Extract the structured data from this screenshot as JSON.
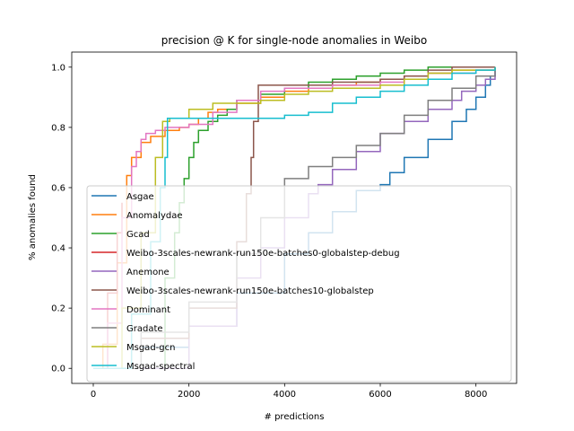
{
  "chart_data": {
    "type": "line",
    "title": "precision @ K for single-node anomalies in Weibo",
    "xlabel": "# predictions",
    "ylabel": "% anomalies found",
    "xlim": [
      -450,
      8850
    ],
    "ylim": [
      -0.05,
      1.05
    ],
    "xticks": [
      0,
      2000,
      4000,
      6000,
      8000
    ],
    "xtick_labels": [
      "0",
      "2000",
      "4000",
      "6000",
      "8000"
    ],
    "yticks": [
      0.0,
      0.2,
      0.4,
      0.6,
      0.8,
      1.0
    ],
    "ytick_labels": [
      "0.0",
      "0.2",
      "0.4",
      "0.6",
      "0.8",
      "1.0"
    ],
    "grid": false,
    "legend_position": "lower-left",
    "series": [
      {
        "name": "Asgae",
        "color": "#1f77b4",
        "points": [
          [
            0,
            0.0
          ],
          [
            1000,
            0.07
          ],
          [
            2000,
            0.14
          ],
          [
            3000,
            0.25
          ],
          [
            4000,
            0.38
          ],
          [
            4500,
            0.45
          ],
          [
            5000,
            0.52
          ],
          [
            5500,
            0.59
          ],
          [
            6000,
            0.61
          ],
          [
            6200,
            0.65
          ],
          [
            6500,
            0.7
          ],
          [
            7000,
            0.76
          ],
          [
            7500,
            0.82
          ],
          [
            7800,
            0.86
          ],
          [
            8000,
            0.9
          ],
          [
            8200,
            0.94
          ],
          [
            8300,
            0.97
          ],
          [
            8400,
            1.0
          ]
        ]
      },
      {
        "name": "Anomalydae",
        "color": "#ff7f0e",
        "points": [
          [
            0,
            0.0
          ],
          [
            200,
            0.08
          ],
          [
            500,
            0.35
          ],
          [
            700,
            0.64
          ],
          [
            800,
            0.7
          ],
          [
            1000,
            0.75
          ],
          [
            1200,
            0.77
          ],
          [
            1500,
            0.79
          ],
          [
            1800,
            0.8
          ],
          [
            2000,
            0.81
          ],
          [
            2200,
            0.83
          ],
          [
            2400,
            0.85
          ],
          [
            2600,
            0.86
          ],
          [
            3000,
            0.88
          ],
          [
            3500,
            0.9
          ],
          [
            4000,
            0.92
          ],
          [
            4500,
            0.93
          ],
          [
            5000,
            0.94
          ],
          [
            5500,
            0.95
          ],
          [
            6000,
            0.96
          ],
          [
            6500,
            0.97
          ],
          [
            7000,
            0.98
          ],
          [
            7500,
            0.99
          ],
          [
            8000,
            0.99
          ],
          [
            8400,
            1.0
          ]
        ]
      },
      {
        "name": "Gcad",
        "color": "#2ca02c",
        "points": [
          [
            0,
            0.0
          ],
          [
            1500,
            0.3
          ],
          [
            1700,
            0.45
          ],
          [
            1800,
            0.55
          ],
          [
            1900,
            0.63
          ],
          [
            2000,
            0.7
          ],
          [
            2100,
            0.75
          ],
          [
            2200,
            0.79
          ],
          [
            2400,
            0.82
          ],
          [
            2600,
            0.84
          ],
          [
            2800,
            0.86
          ],
          [
            3000,
            0.89
          ],
          [
            3500,
            0.91
          ],
          [
            4000,
            0.93
          ],
          [
            4500,
            0.95
          ],
          [
            5000,
            0.96
          ],
          [
            5500,
            0.97
          ],
          [
            6000,
            0.98
          ],
          [
            6500,
            0.99
          ],
          [
            7000,
            1.0
          ],
          [
            8400,
            1.0
          ]
        ]
      },
      {
        "name": "Weibo-3scales-newrank-run150e-batches0-globalstep-debug",
        "color": "#d62728",
        "points": [
          [
            0,
            0.0
          ],
          [
            300,
            0.25
          ],
          [
            500,
            0.45
          ],
          [
            600,
            0.55
          ]
        ]
      },
      {
        "name": "Anemone",
        "color": "#9467bd",
        "points": [
          [
            0,
            0.0
          ],
          [
            2000,
            0.14
          ],
          [
            3000,
            0.3
          ],
          [
            3500,
            0.4
          ],
          [
            4000,
            0.5
          ],
          [
            4500,
            0.58
          ],
          [
            4700,
            0.61
          ],
          [
            5000,
            0.66
          ],
          [
            5500,
            0.72
          ],
          [
            6000,
            0.78
          ],
          [
            6500,
            0.82
          ],
          [
            7000,
            0.86
          ],
          [
            7500,
            0.89
          ],
          [
            7700,
            0.92
          ],
          [
            8000,
            0.94
          ],
          [
            8200,
            0.96
          ],
          [
            8400,
            0.99
          ]
        ]
      },
      {
        "name": "Weibo-3scales-newrank-run150e-batches10-globalstep",
        "color": "#8c564b",
        "points": [
          [
            0,
            0.0
          ],
          [
            1000,
            0.1
          ],
          [
            2000,
            0.2
          ],
          [
            3000,
            0.42
          ],
          [
            3200,
            0.58
          ],
          [
            3300,
            0.7
          ],
          [
            3350,
            0.82
          ],
          [
            3450,
            0.94
          ],
          [
            4000,
            0.94
          ],
          [
            5000,
            0.95
          ],
          [
            6000,
            0.96
          ],
          [
            6500,
            0.97
          ],
          [
            7000,
            0.99
          ],
          [
            7500,
            1.0
          ],
          [
            8400,
            1.0
          ]
        ]
      },
      {
        "name": "Dominant",
        "color": "#e377c2",
        "points": [
          [
            0,
            0.0
          ],
          [
            300,
            0.15
          ],
          [
            600,
            0.5
          ],
          [
            800,
            0.67
          ],
          [
            900,
            0.72
          ],
          [
            1000,
            0.76
          ],
          [
            1100,
            0.78
          ],
          [
            1300,
            0.79
          ],
          [
            1500,
            0.8
          ],
          [
            2000,
            0.81
          ],
          [
            2500,
            0.85
          ],
          [
            3000,
            0.89
          ],
          [
            3500,
            0.92
          ],
          [
            4000,
            0.93
          ],
          [
            5000,
            0.94
          ],
          [
            6000,
            0.95
          ],
          [
            6500,
            0.96
          ],
          [
            7000,
            0.98
          ],
          [
            8000,
            0.99
          ],
          [
            8400,
            1.0
          ]
        ]
      },
      {
        "name": "Gradate",
        "color": "#7f7f7f",
        "points": [
          [
            0,
            0.0
          ],
          [
            1000,
            0.12
          ],
          [
            2000,
            0.22
          ],
          [
            3000,
            0.38
          ],
          [
            3500,
            0.5
          ],
          [
            4000,
            0.63
          ],
          [
            4500,
            0.67
          ],
          [
            5000,
            0.7
          ],
          [
            5500,
            0.74
          ],
          [
            6000,
            0.78
          ],
          [
            6500,
            0.84
          ],
          [
            7000,
            0.89
          ],
          [
            7500,
            0.93
          ],
          [
            8000,
            0.97
          ],
          [
            8400,
            1.0
          ]
        ]
      },
      {
        "name": "Msgad-gcn",
        "color": "#bcbd22",
        "points": [
          [
            0,
            0.0
          ],
          [
            600,
            0.2
          ],
          [
            1000,
            0.45
          ],
          [
            1300,
            0.7
          ],
          [
            1450,
            0.82
          ],
          [
            1600,
            0.83
          ],
          [
            2000,
            0.86
          ],
          [
            2500,
            0.88
          ],
          [
            3000,
            0.88
          ],
          [
            3500,
            0.89
          ],
          [
            4000,
            0.91
          ],
          [
            4500,
            0.92
          ],
          [
            5000,
            0.93
          ],
          [
            6000,
            0.94
          ],
          [
            6500,
            0.96
          ],
          [
            7000,
            0.98
          ],
          [
            7500,
            0.99
          ],
          [
            8400,
            1.0
          ]
        ]
      },
      {
        "name": "Msgad-spectral",
        "color": "#17becf",
        "points": [
          [
            0,
            0.0
          ],
          [
            800,
            0.18
          ],
          [
            1200,
            0.42
          ],
          [
            1400,
            0.6
          ],
          [
            1500,
            0.7
          ],
          [
            1550,
            0.83
          ],
          [
            2000,
            0.83
          ],
          [
            3000,
            0.83
          ],
          [
            3500,
            0.83
          ],
          [
            4000,
            0.84
          ],
          [
            4500,
            0.85
          ],
          [
            5000,
            0.88
          ],
          [
            5500,
            0.9
          ],
          [
            6000,
            0.92
          ],
          [
            6500,
            0.94
          ],
          [
            7000,
            0.96
          ],
          [
            7500,
            0.98
          ],
          [
            8000,
            0.99
          ],
          [
            8400,
            1.0
          ]
        ]
      }
    ]
  }
}
